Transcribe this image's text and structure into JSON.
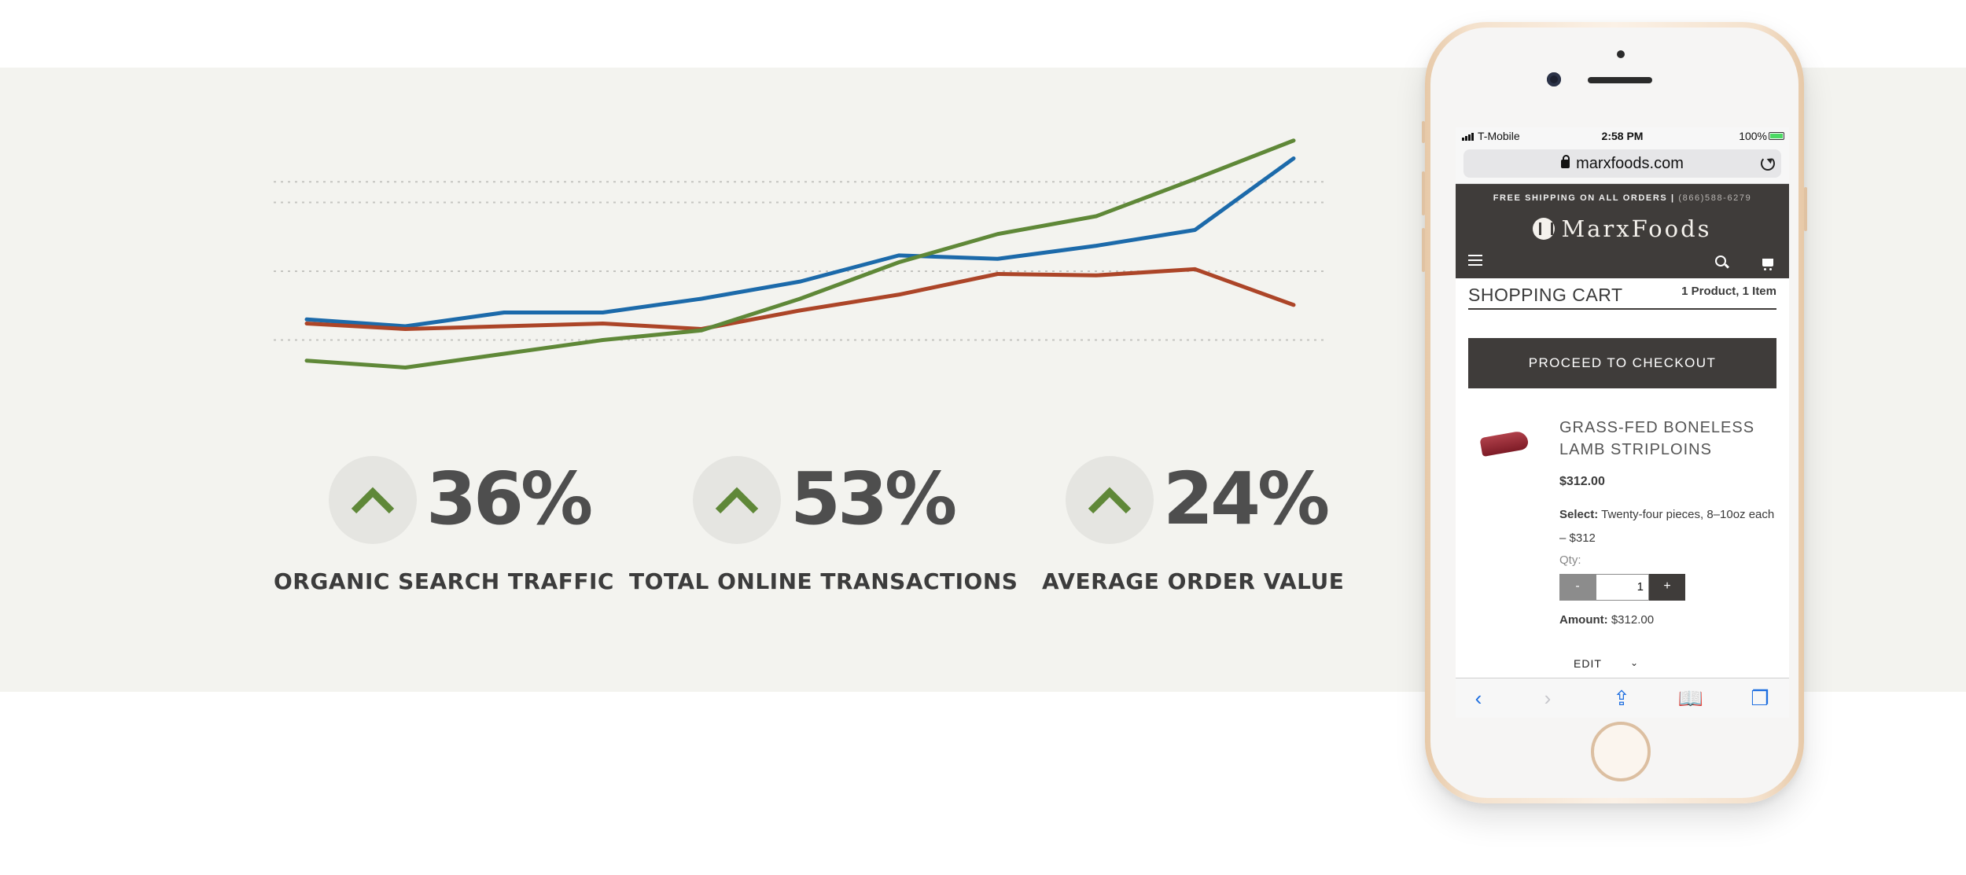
{
  "chart_data": {
    "type": "line",
    "x": [
      1,
      2,
      3,
      4,
      5,
      6,
      7,
      8,
      9,
      10,
      11
    ],
    "ylim": [
      0,
      4
    ],
    "grid": true,
    "series": [
      {
        "name": "",
        "color": "#1c6aaa",
        "values": [
          1.3,
          1.2,
          1.4,
          1.4,
          1.6,
          1.85,
          2.23,
          2.18,
          2.37,
          2.6,
          3.64
        ]
      },
      {
        "name": "",
        "color": "#ac4528",
        "values": [
          1.24,
          1.16,
          1.2,
          1.24,
          1.16,
          1.43,
          1.66,
          1.96,
          1.94,
          2.03,
          1.51
        ]
      },
      {
        "name": "",
        "color": "#5f8838",
        "values": [
          0.7,
          0.6,
          0.8,
          1.0,
          1.14,
          1.6,
          2.13,
          2.54,
          2.8,
          3.34,
          3.9
        ]
      }
    ]
  },
  "stats": [
    {
      "value": "36%",
      "label": "ORGANIC SEARCH TRAFFIC",
      "arrow": "chevron-up",
      "arrow_color": "#5f8838"
    },
    {
      "value": "53%",
      "label": "TOTAL ONLINE TRANSACTIONS",
      "arrow": "chevron-up",
      "arrow_color": "#5f8838"
    },
    {
      "value": "24%",
      "label": "AVERAGE ORDER VALUE",
      "arrow": "chevron-up",
      "arrow_color": "#5f8838"
    }
  ],
  "phone": {
    "status": {
      "carrier": "T-Mobile",
      "time": "2:58 PM",
      "battery": "100%"
    },
    "browser": {
      "url": "marxfoods.com"
    },
    "site": {
      "promo": "FREE SHIPPING ON ALL ORDERS |",
      "promo_phone": "(866)588-6279",
      "logo": "MarxFoods"
    },
    "cart": {
      "title": "SHOPPING CART",
      "count": "1 Product, 1 Item",
      "checkout_label": "PROCEED TO CHECKOUT",
      "item": {
        "name": "GRASS-FED BONELESS LAMB STRIPLOINS",
        "price": "$312.00",
        "select_label": "Select:",
        "select_value": "Twenty-four pieces, 8–10oz each – $312",
        "qty_label": "Qty:",
        "qty_minus": "-",
        "qty_value": "1",
        "qty_plus": "+",
        "amount_label": "Amount:",
        "amount_value": "$312.00",
        "edit_label": "EDIT"
      }
    },
    "toolbar": {
      "back": "‹",
      "forward": "›",
      "share": "⇪",
      "bookmarks": "📖",
      "tabs": "❐"
    }
  },
  "colors": {
    "band": "#f3f3ef",
    "dark": "#3f3c3a",
    "accent_green": "#5f8838"
  }
}
